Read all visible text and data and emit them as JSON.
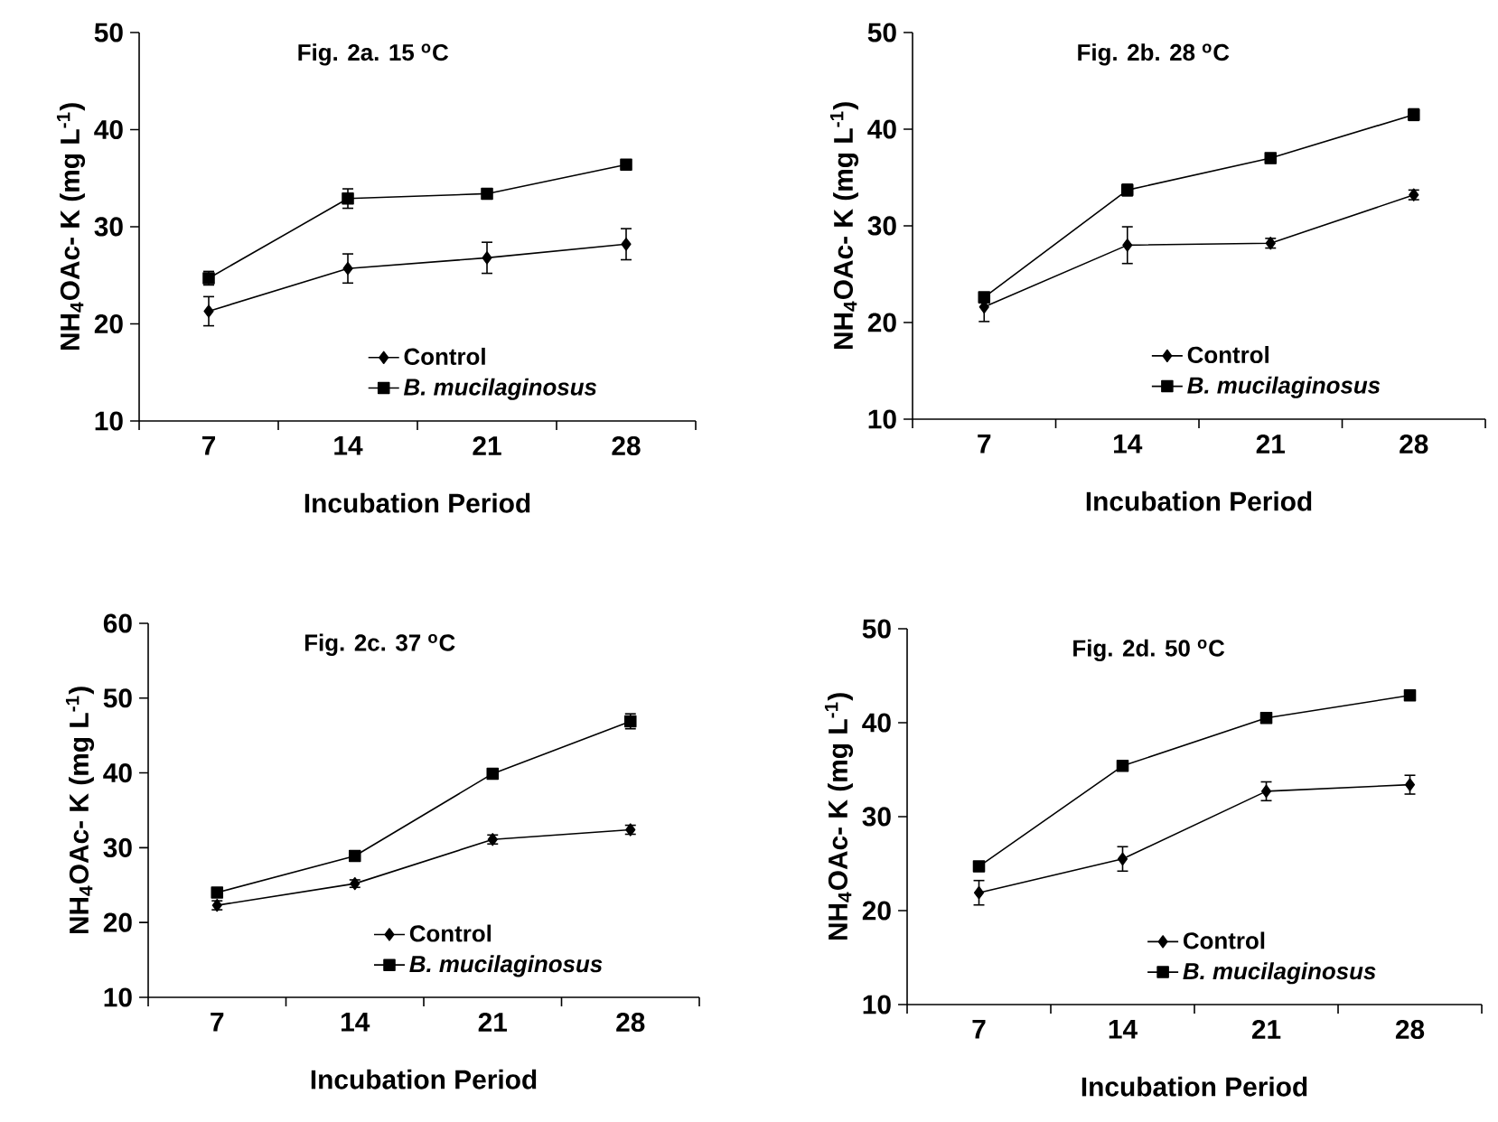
{
  "chart_data": [
    {
      "type": "line",
      "title": "Fig. 2a. 15 $^{o}$C",
      "xlabel": "Incubation Period",
      "ylabel": "NH$_{4}$OAc- K (mg  L$^{-1}$)",
      "categories": [
        "7",
        "14",
        "21",
        "28"
      ],
      "ylim": [
        10,
        50
      ],
      "yticks": [
        10,
        20,
        30,
        40,
        50
      ],
      "legend": "bottom",
      "grid": false,
      "series": [
        {
          "name": "Control",
          "color": "#000000",
          "marker": "diamond",
          "values": [
            21.3,
            25.7,
            26.8,
            28.2
          ],
          "errors": [
            1.5,
            1.5,
            1.6,
            1.6
          ]
        },
        {
          "name": "*B. mucilaginosus*",
          "color": "#000000",
          "marker": "square",
          "values": [
            24.7,
            32.9,
            33.4,
            36.4
          ],
          "errors": [
            0.7,
            1.0,
            0.5,
            0.5
          ]
        }
      ]
    },
    {
      "type": "line",
      "title": "Fig. 2b. 28 $^{o}$C",
      "xlabel": "Incubation Period",
      "ylabel": "NH$_{4}$OAc- K (mg  L$^{-1}$)",
      "categories": [
        "7",
        "14",
        "21",
        "28"
      ],
      "ylim": [
        10,
        50
      ],
      "yticks": [
        10,
        20,
        30,
        40,
        50
      ],
      "legend": "bottom",
      "grid": false,
      "series": [
        {
          "name": "Control",
          "color": "#000000",
          "marker": "diamond",
          "values": [
            21.6,
            28.0,
            28.2,
            33.2
          ],
          "errors": [
            1.5,
            1.9,
            0.5,
            0.5
          ]
        },
        {
          "name": "*B. mucilaginosus*",
          "color": "#000000",
          "marker": "square",
          "values": [
            22.6,
            33.7,
            37.0,
            41.5
          ],
          "errors": [
            null,
            0.6,
            0.5,
            0.6
          ]
        }
      ]
    },
    {
      "type": "line",
      "title": "Fig. 2c. 37 $^{o}$C",
      "xlabel": "Incubation Period",
      "ylabel": "NH$_{4}$OAc- K (mg  L$^{-1}$)",
      "categories": [
        "7",
        "14",
        "21",
        "28"
      ],
      "ylim": [
        10,
        60
      ],
      "yticks": [
        10,
        20,
        30,
        40,
        50,
        60
      ],
      "legend": "bottom",
      "grid": false,
      "series": [
        {
          "name": "Control",
          "color": "#000000",
          "marker": "diamond",
          "values": [
            22.3,
            25.2,
            31.1,
            32.4
          ],
          "errors": [
            0.6,
            0.5,
            0.6,
            0.6
          ]
        },
        {
          "name": "*B. mucilaginosus*",
          "color": "#000000",
          "marker": "square",
          "values": [
            24.0,
            28.9,
            39.9,
            46.9
          ],
          "errors": [
            0.6,
            0.6,
            0.6,
            1.0
          ]
        }
      ]
    },
    {
      "type": "line",
      "title": "Fig. 2d. 50 $^{o}$C",
      "xlabel": "Incubation Period",
      "ylabel": "NH$_{4}$OAc- K (mg  L$^{-1}$)",
      "categories": [
        "7",
        "14",
        "21",
        "28"
      ],
      "ylim": [
        10,
        50
      ],
      "yticks": [
        10,
        20,
        30,
        40,
        50
      ],
      "legend": "bottom",
      "grid": false,
      "series": [
        {
          "name": "Control",
          "color": "#000000",
          "marker": "diamond",
          "values": [
            21.9,
            25.5,
            32.7,
            33.4
          ],
          "errors": [
            1.3,
            1.3,
            1.0,
            1.0
          ]
        },
        {
          "name": "*B. mucilaginosus*",
          "color": "#000000",
          "marker": "square",
          "values": [
            24.7,
            35.4,
            40.5,
            42.9
          ],
          "errors": [
            0.5,
            0.5,
            0.5,
            0.5
          ]
        }
      ]
    }
  ]
}
